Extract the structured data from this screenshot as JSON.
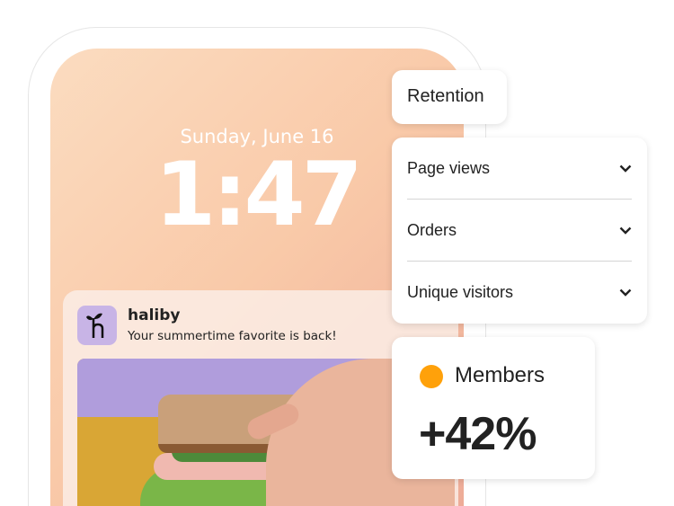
{
  "lockscreen": {
    "date": "Sunday, June 16",
    "time": "1:47"
  },
  "notification": {
    "app_name": "haliby",
    "message": "Your summertime favorite is back!",
    "icon": "haliby-sprout-logo",
    "icon_color": "#c8b4e6"
  },
  "retention_card": {
    "label": "Retention"
  },
  "metrics_dropdown": {
    "items": [
      {
        "label": "Page views",
        "icon": "chevron-down-icon"
      },
      {
        "label": "Orders",
        "icon": "chevron-down-icon"
      },
      {
        "label": "Unique visitors",
        "icon": "chevron-down-icon"
      }
    ]
  },
  "members_card": {
    "label": "Members",
    "value": "+42%",
    "dot_color": "#ffa10a"
  }
}
